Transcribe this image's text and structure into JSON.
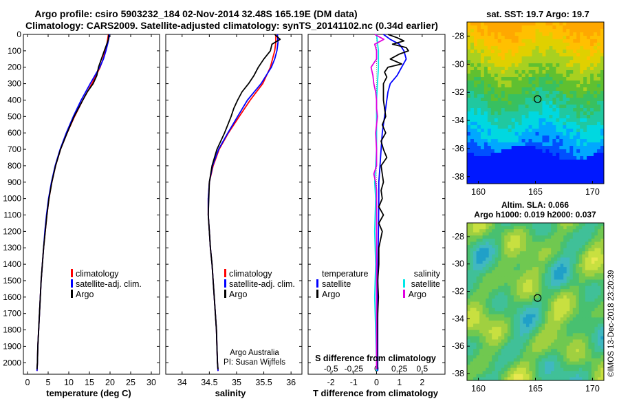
{
  "figure": {
    "title_line1": "Argo profile: csiro 5903232_184 02-Nov-2014 32.48S 165.19E (DM data)",
    "title_line2": "Climatology: CARS2009. Satellite-adjusted climatology: synTS_20141102.nc (0.34d earlier)",
    "credit_line1": "Argo Australia",
    "credit_line2": "PI: Susan Wijffels",
    "watermark": "©IMOS 13-Dec-2018 23:20:39"
  },
  "colors": {
    "climatology": "#ff0000",
    "satellite": "#0000ff",
    "argo": "#000000",
    "salinity_satellite": "#00e8e8",
    "salinity_argo": "#e000e0"
  },
  "chart_data": [
    {
      "type": "line",
      "panel": "temperature",
      "xlabel": "temperature (deg C)",
      "ylabel": "",
      "xlim": [
        -1,
        32
      ],
      "ylim": [
        2070,
        0
      ],
      "xticks": [
        0,
        5,
        10,
        15,
        20,
        25,
        30
      ],
      "yticks": [
        0,
        100,
        200,
        300,
        400,
        500,
        600,
        700,
        800,
        900,
        1000,
        1100,
        1200,
        1300,
        1400,
        1500,
        1600,
        1700,
        1800,
        1900,
        2000
      ],
      "legend": [
        "climatology",
        "satellite-adj. clim.",
        "Argo"
      ],
      "series": [
        {
          "name": "climatology",
          "depth": [
            0,
            50,
            100,
            150,
            200,
            300,
            400,
            500,
            600,
            700,
            800,
            900,
            1000,
            1100,
            1200,
            1300,
            1400,
            1500,
            1600,
            1700,
            1800,
            1900,
            2000,
            2050
          ],
          "values": [
            19.6,
            19.3,
            18.8,
            18.3,
            17.6,
            15.6,
            13.4,
            11.4,
            9.6,
            8.0,
            6.8,
            5.9,
            5.2,
            4.7,
            4.3,
            3.9,
            3.6,
            3.3,
            3.1,
            2.9,
            2.7,
            2.5,
            2.4,
            2.3
          ]
        },
        {
          "name": "satellite-adj. clim.",
          "depth": [
            0,
            50,
            100,
            150,
            200,
            300,
            400,
            500,
            600,
            700,
            800,
            900,
            1000,
            1100,
            1200,
            1300,
            1400,
            1500,
            1600,
            1700,
            1800,
            1900,
            2000,
            2050
          ],
          "values": [
            19.9,
            19.5,
            19.0,
            18.4,
            17.5,
            15.2,
            13.0,
            11.1,
            9.4,
            7.9,
            6.7,
            5.8,
            5.1,
            4.6,
            4.2,
            3.9,
            3.6,
            3.3,
            3.1,
            2.9,
            2.7,
            2.5,
            2.4,
            2.3
          ]
        },
        {
          "name": "Argo",
          "depth": [
            0,
            30,
            60,
            100,
            150,
            200,
            250,
            300,
            350,
            400,
            500,
            600,
            700,
            800,
            900,
            1000,
            1100,
            1200,
            1300,
            1400,
            1500,
            1600,
            1700,
            1800,
            1900,
            2000,
            2040
          ],
          "values": [
            19.7,
            19.6,
            19.2,
            18.6,
            17.9,
            17.2,
            16.8,
            15.9,
            14.5,
            13.4,
            11.3,
            9.6,
            8.0,
            6.8,
            5.9,
            5.2,
            4.7,
            4.3,
            3.9,
            3.6,
            3.3,
            3.1,
            2.9,
            2.7,
            2.5,
            2.4,
            2.3
          ]
        }
      ]
    },
    {
      "type": "line",
      "panel": "salinity",
      "xlabel": "salinity",
      "ylabel": "",
      "xlim": [
        33.7,
        36.2
      ],
      "ylim": [
        2070,
        0
      ],
      "xticks": [
        34,
        34.5,
        35,
        35.5,
        36
      ],
      "legend": [
        "climatology",
        "satellite-adj. clim.",
        "Argo"
      ],
      "series": [
        {
          "name": "climatology",
          "depth": [
            0,
            50,
            100,
            150,
            200,
            300,
            400,
            500,
            600,
            700,
            800,
            900,
            1000,
            1100,
            1200,
            1300,
            1400,
            1500,
            1600,
            1700,
            1800,
            1900,
            2000,
            2050
          ],
          "values": [
            35.72,
            35.72,
            35.7,
            35.66,
            35.62,
            35.48,
            35.25,
            35.05,
            34.85,
            34.68,
            34.57,
            34.5,
            34.48,
            34.48,
            34.5,
            34.52,
            34.55,
            34.57,
            34.59,
            34.61,
            34.63,
            34.64,
            34.65,
            34.66
          ]
        },
        {
          "name": "satellite-adj. clim.",
          "depth": [
            0,
            50,
            100,
            150,
            200,
            300,
            400,
            500,
            600,
            700,
            800,
            900,
            1000,
            1100,
            1200,
            1300,
            1400,
            1500,
            1600,
            1700,
            1800,
            1900,
            2000,
            2050
          ],
          "values": [
            35.75,
            35.76,
            35.74,
            35.7,
            35.64,
            35.45,
            35.2,
            35.02,
            34.84,
            34.67,
            34.56,
            34.5,
            34.48,
            34.48,
            34.5,
            34.52,
            34.55,
            34.57,
            34.59,
            34.61,
            34.63,
            34.64,
            34.65,
            34.66
          ]
        },
        {
          "name": "Argo",
          "depth": [
            0,
            30,
            60,
            100,
            150,
            200,
            250,
            300,
            350,
            400,
            450,
            500,
            600,
            700,
            800,
            900,
            1000,
            1100,
            1200,
            1300,
            1400,
            1500,
            1600,
            1700,
            1800,
            1900,
            2000,
            2040
          ],
          "values": [
            35.7,
            35.8,
            35.65,
            35.62,
            35.5,
            35.4,
            35.32,
            35.22,
            35.1,
            35.02,
            34.95,
            34.9,
            34.78,
            34.64,
            34.55,
            34.5,
            34.49,
            34.48,
            34.5,
            34.52,
            34.55,
            34.57,
            34.59,
            34.61,
            34.63,
            34.64,
            34.65,
            34.66
          ]
        }
      ]
    },
    {
      "type": "line",
      "panel": "difference",
      "xlabel": "T difference from climatology",
      "xlabel2": "S difference from climatology",
      "xlim": [
        -3.0,
        3.0
      ],
      "ylim": [
        2070,
        0
      ],
      "xticks": [
        -2,
        -1,
        0,
        1,
        2
      ],
      "xticks2": [
        -0.5,
        -0.25,
        0,
        0.25,
        0.5
      ],
      "legend_temperature_title": "temperature",
      "legend_salinity_title": "salinity",
      "legend_temperature": [
        "satellite",
        "Argo"
      ],
      "legend_salinity": [
        "satellite",
        "Argo"
      ],
      "series": [
        {
          "name": "T satellite",
          "depth": [
            0,
            30,
            60,
            100,
            150,
            200,
            250,
            300,
            350,
            400,
            500,
            600,
            700,
            800,
            900,
            1000,
            1200,
            1400,
            1600,
            1800,
            2000,
            2050
          ],
          "values": [
            0.3,
            0.6,
            1.0,
            1.2,
            1.3,
            1.1,
            0.9,
            0.6,
            0.5,
            0.45,
            0.35,
            0.25,
            0.2,
            0.15,
            0.1,
            0.1,
            0.08,
            0.06,
            0.05,
            0.05,
            0.05,
            0.05
          ]
        },
        {
          "name": "T Argo",
          "depth": [
            0,
            20,
            40,
            60,
            80,
            100,
            120,
            150,
            180,
            200,
            230,
            260,
            300,
            350,
            400,
            450,
            500,
            550,
            600,
            650,
            700,
            750,
            800,
            850,
            900,
            950,
            1000,
            1050,
            1100,
            1150,
            1200,
            1300,
            1400,
            1500,
            1600,
            1700,
            1800,
            1900,
            2000,
            2040
          ],
          "values": [
            0.5,
            0.9,
            1.2,
            0.7,
            1.3,
            1.4,
            1.0,
            0.6,
            1.1,
            0.5,
            0.35,
            0.45,
            0.3,
            0.3,
            0.3,
            0.35,
            0.4,
            0.25,
            0.4,
            0.2,
            0.3,
            0.45,
            0.2,
            0.25,
            0.3,
            0.2,
            0.25,
            0.1,
            0.3,
            0.1,
            0.25,
            0.1,
            0.1,
            0.05,
            0.08,
            0.05,
            0.04,
            0.03,
            0.03,
            0.03
          ]
        },
        {
          "name": "S satellite",
          "depth": [
            0,
            50,
            100,
            200,
            300,
            400,
            500,
            600,
            700,
            800,
            900,
            1000,
            1200,
            1400,
            1600,
            1800,
            2000,
            2050
          ],
          "values": [
            0.0,
            0.01,
            0.02,
            0.02,
            0.01,
            0.0,
            0.0,
            0.0,
            0.0,
            -0.01,
            -0.02,
            -0.01,
            -0.02,
            -0.01,
            -0.02,
            -0.01,
            0.0,
            0.0
          ]
        },
        {
          "name": "S Argo",
          "depth": [
            0,
            30,
            60,
            100,
            150,
            200,
            250,
            300,
            350,
            400,
            450,
            500,
            550,
            600,
            700,
            800,
            850,
            900,
            950,
            1000,
            1200,
            1400,
            1600,
            1800,
            2000,
            2040
          ],
          "values": [
            -0.02,
            0.08,
            -0.02,
            0.0,
            0.0,
            -0.06,
            -0.04,
            -0.03,
            -0.01,
            0.0,
            0.0,
            0.01,
            0.0,
            -0.01,
            0.0,
            0.0,
            -0.03,
            -0.01,
            0.0,
            0.0,
            0.0,
            0.0,
            0.0,
            0.0,
            0.0,
            0.0
          ]
        }
      ]
    },
    {
      "type": "heatmap",
      "panel": "sst_map",
      "title": "sat. SST: 19.7 Argo: 19.7",
      "xlim": [
        159,
        171
      ],
      "ylim": [
        -38.5,
        -27
      ],
      "xticks": [
        160,
        165,
        170
      ],
      "yticks": [
        -28,
        -30,
        -32,
        -34,
        -36,
        -38
      ],
      "marker": {
        "lon": 165.19,
        "lat": -32.48
      }
    },
    {
      "type": "heatmap",
      "panel": "sla_map",
      "title_line1": "Altim. SLA: 0.066",
      "title_line2": "Argo h1000: 0.019 h2000: 0.037",
      "xlim": [
        159,
        171
      ],
      "ylim": [
        -38.5,
        -27
      ],
      "xticks": [
        160,
        165,
        170
      ],
      "yticks": [
        -28,
        -30,
        -32,
        -34,
        -36,
        -38
      ],
      "marker": {
        "lon": 165.19,
        "lat": -32.48
      }
    }
  ]
}
